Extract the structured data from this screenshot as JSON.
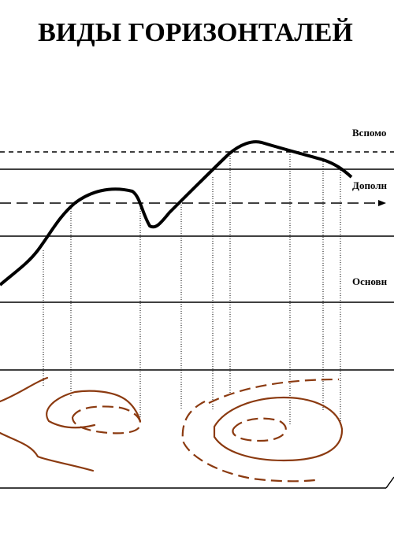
{
  "header": {
    "title": "ВИДЫ ГОРИЗОНТАЛЕЙ"
  },
  "labels": [
    "Вспомо",
    "Дополн",
    "Основн"
  ]
}
